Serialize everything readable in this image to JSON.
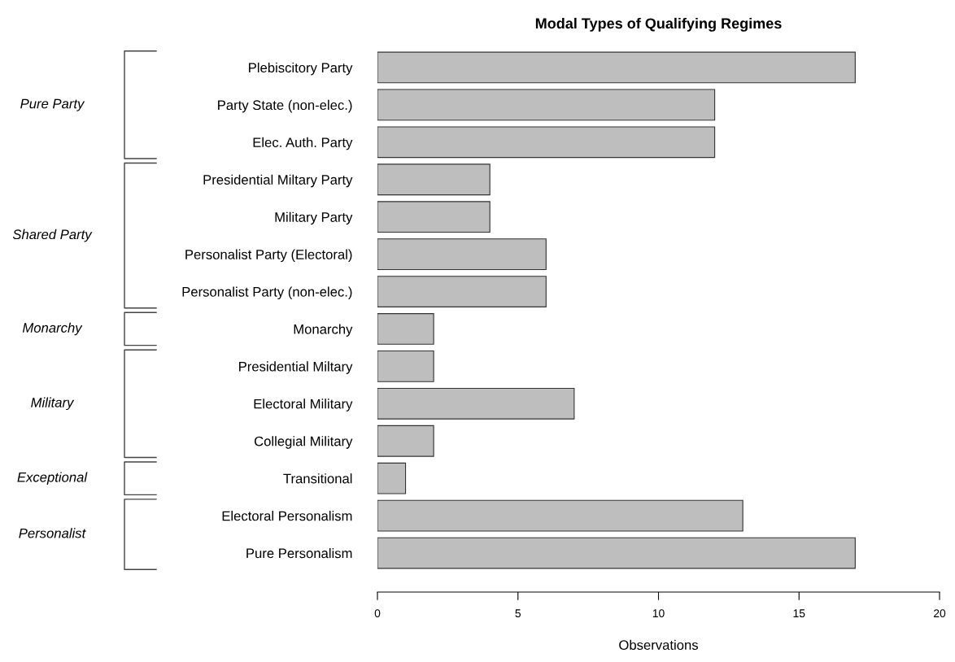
{
  "chart_data": {
    "type": "bar",
    "orientation": "horizontal",
    "title": "Modal Types of Qualifying Regimes",
    "xlabel": "Observations",
    "categories": [
      "Plebiscitory Party",
      "Party State (non-elec.)",
      "Elec. Auth. Party",
      "Presidential Miltary Party",
      "Military Party",
      "Personalist Party (Electoral)",
      "Personalist Party (non-elec.)",
      "Monarchy",
      "Presidential Miltary",
      "Electoral Military",
      "Collegial Military",
      "Transitional",
      "Electoral Personalism",
      "Pure Personalism"
    ],
    "values": [
      17,
      12,
      12,
      4,
      4,
      6,
      6,
      2,
      2,
      7,
      2,
      1,
      13,
      17
    ],
    "color": "#bebebe",
    "xlim": [
      0,
      20
    ],
    "xticks": [
      0,
      5,
      10,
      15,
      20
    ],
    "grid": false,
    "annotations": [
      "Pure Party",
      "Shared Party",
      "Monarchy",
      "Military",
      "Exceptional",
      "Personalist"
    ]
  }
}
